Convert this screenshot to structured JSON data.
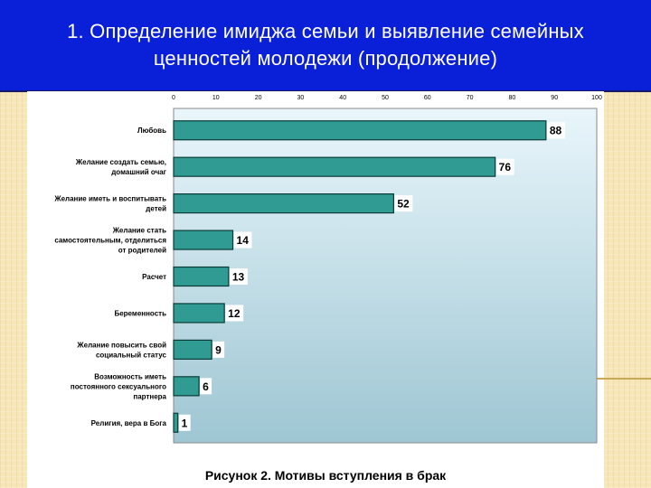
{
  "slide": {
    "title_number": "1.",
    "title_line1": "Определение имиджа семьи и выявление семейных",
    "title_line2": "ценностей молодежи (продолжение)",
    "caption": "Рисунок 2. Мотивы вступления в брак"
  },
  "colors": {
    "header_bg": "#0a1fd8",
    "bar_fill": "#2f9b92",
    "bar_stroke": "#0b3b38",
    "plot_bg_top": "#e9f6fb",
    "plot_bg_bottom": "#9ec6d3"
  },
  "chart_data": {
    "type": "bar",
    "orientation": "horizontal",
    "xlim": [
      0,
      100
    ],
    "xticks": [
      0,
      10,
      20,
      30,
      40,
      50,
      60,
      70,
      80,
      90,
      100
    ],
    "grid": false,
    "categories": [
      [
        "Любовь"
      ],
      [
        "Желание создать семью,",
        "домашний очаг"
      ],
      [
        "Желание иметь и воспитывать",
        "детей"
      ],
      [
        "Желание стать",
        "самостоятельным, отделиться",
        "от родителей"
      ],
      [
        "Расчет"
      ],
      [
        "Беременность"
      ],
      [
        "Желание повысить свой",
        "социальный статус"
      ],
      [
        "Возможность иметь",
        "постоянного сексуального",
        "партнера"
      ],
      [
        "Религия, вера в Бога"
      ]
    ],
    "values": [
      88,
      76,
      52,
      14,
      13,
      12,
      9,
      6,
      1
    ]
  }
}
